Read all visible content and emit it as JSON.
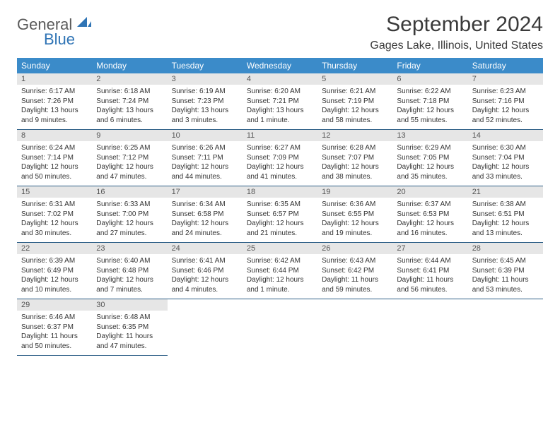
{
  "brand": {
    "general": "General",
    "blue": "Blue"
  },
  "title": "September 2024",
  "location": "Gages Lake, Illinois, United States",
  "colors": {
    "header_bg": "#3b8bc9",
    "header_text": "#ffffff",
    "daynum_bg": "#e6e6e6",
    "row_border": "#2e5f87",
    "brand_blue": "#2f74b5",
    "brand_grey": "#5a5a5a"
  },
  "dow": [
    "Sunday",
    "Monday",
    "Tuesday",
    "Wednesday",
    "Thursday",
    "Friday",
    "Saturday"
  ],
  "weeks": [
    [
      {
        "n": "1",
        "sunrise": "Sunrise: 6:17 AM",
        "sunset": "Sunset: 7:26 PM",
        "day": "Daylight: 13 hours and 9 minutes."
      },
      {
        "n": "2",
        "sunrise": "Sunrise: 6:18 AM",
        "sunset": "Sunset: 7:24 PM",
        "day": "Daylight: 13 hours and 6 minutes."
      },
      {
        "n": "3",
        "sunrise": "Sunrise: 6:19 AM",
        "sunset": "Sunset: 7:23 PM",
        "day": "Daylight: 13 hours and 3 minutes."
      },
      {
        "n": "4",
        "sunrise": "Sunrise: 6:20 AM",
        "sunset": "Sunset: 7:21 PM",
        "day": "Daylight: 13 hours and 1 minute."
      },
      {
        "n": "5",
        "sunrise": "Sunrise: 6:21 AM",
        "sunset": "Sunset: 7:19 PM",
        "day": "Daylight: 12 hours and 58 minutes."
      },
      {
        "n": "6",
        "sunrise": "Sunrise: 6:22 AM",
        "sunset": "Sunset: 7:18 PM",
        "day": "Daylight: 12 hours and 55 minutes."
      },
      {
        "n": "7",
        "sunrise": "Sunrise: 6:23 AM",
        "sunset": "Sunset: 7:16 PM",
        "day": "Daylight: 12 hours and 52 minutes."
      }
    ],
    [
      {
        "n": "8",
        "sunrise": "Sunrise: 6:24 AM",
        "sunset": "Sunset: 7:14 PM",
        "day": "Daylight: 12 hours and 50 minutes."
      },
      {
        "n": "9",
        "sunrise": "Sunrise: 6:25 AM",
        "sunset": "Sunset: 7:12 PM",
        "day": "Daylight: 12 hours and 47 minutes."
      },
      {
        "n": "10",
        "sunrise": "Sunrise: 6:26 AM",
        "sunset": "Sunset: 7:11 PM",
        "day": "Daylight: 12 hours and 44 minutes."
      },
      {
        "n": "11",
        "sunrise": "Sunrise: 6:27 AM",
        "sunset": "Sunset: 7:09 PM",
        "day": "Daylight: 12 hours and 41 minutes."
      },
      {
        "n": "12",
        "sunrise": "Sunrise: 6:28 AM",
        "sunset": "Sunset: 7:07 PM",
        "day": "Daylight: 12 hours and 38 minutes."
      },
      {
        "n": "13",
        "sunrise": "Sunrise: 6:29 AM",
        "sunset": "Sunset: 7:05 PM",
        "day": "Daylight: 12 hours and 35 minutes."
      },
      {
        "n": "14",
        "sunrise": "Sunrise: 6:30 AM",
        "sunset": "Sunset: 7:04 PM",
        "day": "Daylight: 12 hours and 33 minutes."
      }
    ],
    [
      {
        "n": "15",
        "sunrise": "Sunrise: 6:31 AM",
        "sunset": "Sunset: 7:02 PM",
        "day": "Daylight: 12 hours and 30 minutes."
      },
      {
        "n": "16",
        "sunrise": "Sunrise: 6:33 AM",
        "sunset": "Sunset: 7:00 PM",
        "day": "Daylight: 12 hours and 27 minutes."
      },
      {
        "n": "17",
        "sunrise": "Sunrise: 6:34 AM",
        "sunset": "Sunset: 6:58 PM",
        "day": "Daylight: 12 hours and 24 minutes."
      },
      {
        "n": "18",
        "sunrise": "Sunrise: 6:35 AM",
        "sunset": "Sunset: 6:57 PM",
        "day": "Daylight: 12 hours and 21 minutes."
      },
      {
        "n": "19",
        "sunrise": "Sunrise: 6:36 AM",
        "sunset": "Sunset: 6:55 PM",
        "day": "Daylight: 12 hours and 19 minutes."
      },
      {
        "n": "20",
        "sunrise": "Sunrise: 6:37 AM",
        "sunset": "Sunset: 6:53 PM",
        "day": "Daylight: 12 hours and 16 minutes."
      },
      {
        "n": "21",
        "sunrise": "Sunrise: 6:38 AM",
        "sunset": "Sunset: 6:51 PM",
        "day": "Daylight: 12 hours and 13 minutes."
      }
    ],
    [
      {
        "n": "22",
        "sunrise": "Sunrise: 6:39 AM",
        "sunset": "Sunset: 6:49 PM",
        "day": "Daylight: 12 hours and 10 minutes."
      },
      {
        "n": "23",
        "sunrise": "Sunrise: 6:40 AM",
        "sunset": "Sunset: 6:48 PM",
        "day": "Daylight: 12 hours and 7 minutes."
      },
      {
        "n": "24",
        "sunrise": "Sunrise: 6:41 AM",
        "sunset": "Sunset: 6:46 PM",
        "day": "Daylight: 12 hours and 4 minutes."
      },
      {
        "n": "25",
        "sunrise": "Sunrise: 6:42 AM",
        "sunset": "Sunset: 6:44 PM",
        "day": "Daylight: 12 hours and 1 minute."
      },
      {
        "n": "26",
        "sunrise": "Sunrise: 6:43 AM",
        "sunset": "Sunset: 6:42 PM",
        "day": "Daylight: 11 hours and 59 minutes."
      },
      {
        "n": "27",
        "sunrise": "Sunrise: 6:44 AM",
        "sunset": "Sunset: 6:41 PM",
        "day": "Daylight: 11 hours and 56 minutes."
      },
      {
        "n": "28",
        "sunrise": "Sunrise: 6:45 AM",
        "sunset": "Sunset: 6:39 PM",
        "day": "Daylight: 11 hours and 53 minutes."
      }
    ],
    [
      {
        "n": "29",
        "sunrise": "Sunrise: 6:46 AM",
        "sunset": "Sunset: 6:37 PM",
        "day": "Daylight: 11 hours and 50 minutes."
      },
      {
        "n": "30",
        "sunrise": "Sunrise: 6:48 AM",
        "sunset": "Sunset: 6:35 PM",
        "day": "Daylight: 11 hours and 47 minutes."
      },
      null,
      null,
      null,
      null,
      null
    ]
  ]
}
